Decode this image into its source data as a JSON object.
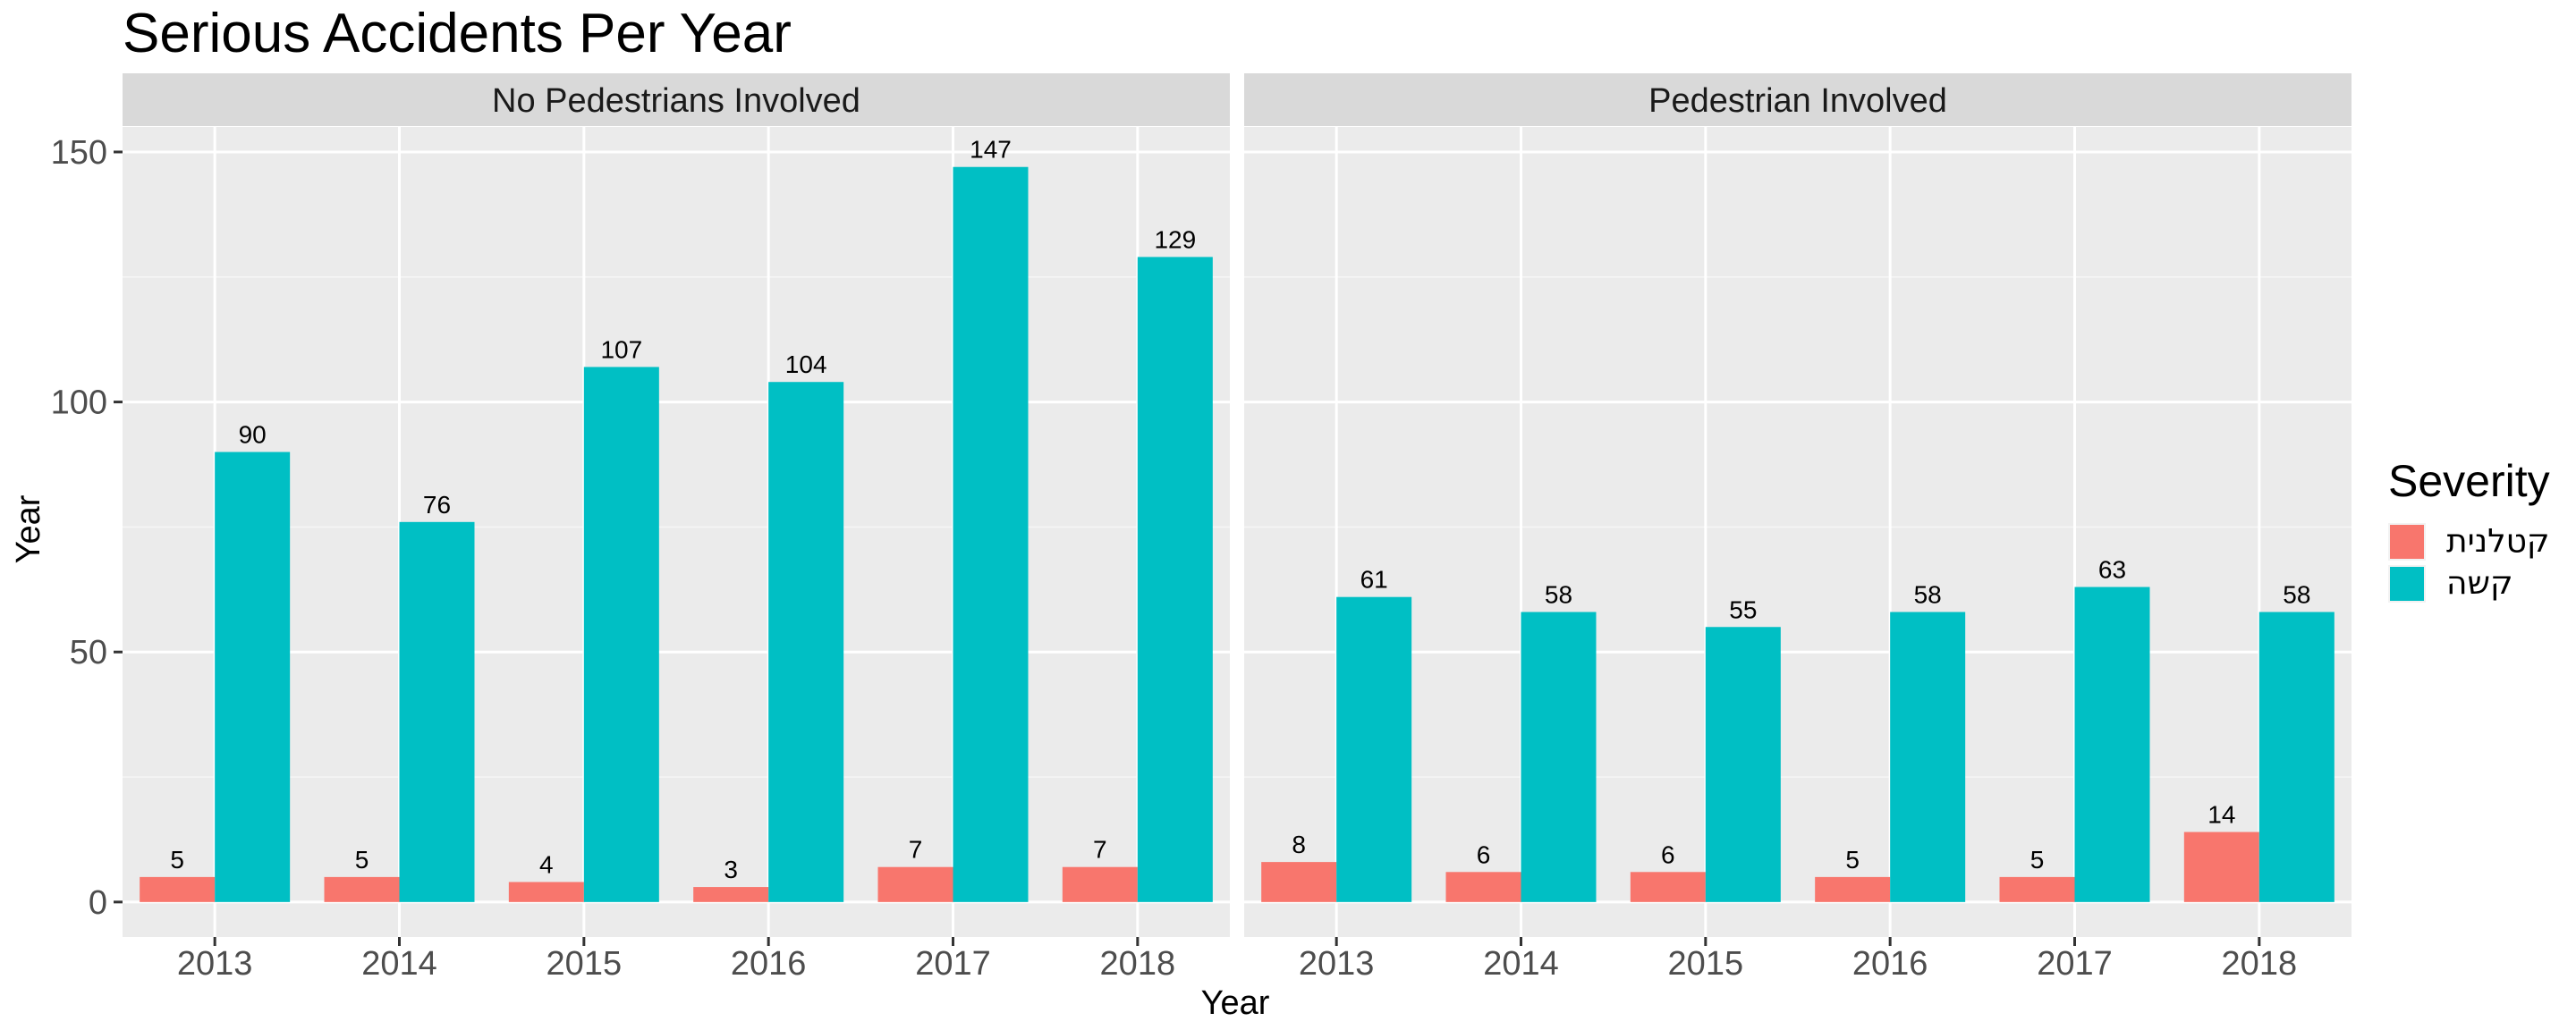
{
  "chart_data": {
    "type": "bar",
    "title": "Serious Accidents Per Year",
    "xlabel": "Year",
    "ylabel": "Year",
    "ylim": [
      -7,
      155
    ],
    "yticks": [
      0,
      50,
      100,
      150
    ],
    "grid": true,
    "legend_position": "right",
    "legend_title": "Severity",
    "categories": [
      "2013",
      "2014",
      "2015",
      "2016",
      "2017",
      "2018"
    ],
    "series_colors": [
      "#F8766D",
      "#00BFC4"
    ],
    "facets": [
      {
        "label": "No Pedestrians Involved",
        "series": [
          {
            "name": "קטלנית",
            "values": [
              5,
              5,
              4,
              3,
              7,
              7
            ]
          },
          {
            "name": "קשה",
            "values": [
              90,
              76,
              107,
              104,
              147,
              129
            ]
          }
        ]
      },
      {
        "label": "Pedestrian Involved",
        "series": [
          {
            "name": "קטלנית",
            "values": [
              8,
              6,
              6,
              5,
              5,
              14
            ]
          },
          {
            "name": "קשה",
            "values": [
              61,
              58,
              55,
              58,
              63,
              58
            ]
          }
        ]
      }
    ]
  }
}
